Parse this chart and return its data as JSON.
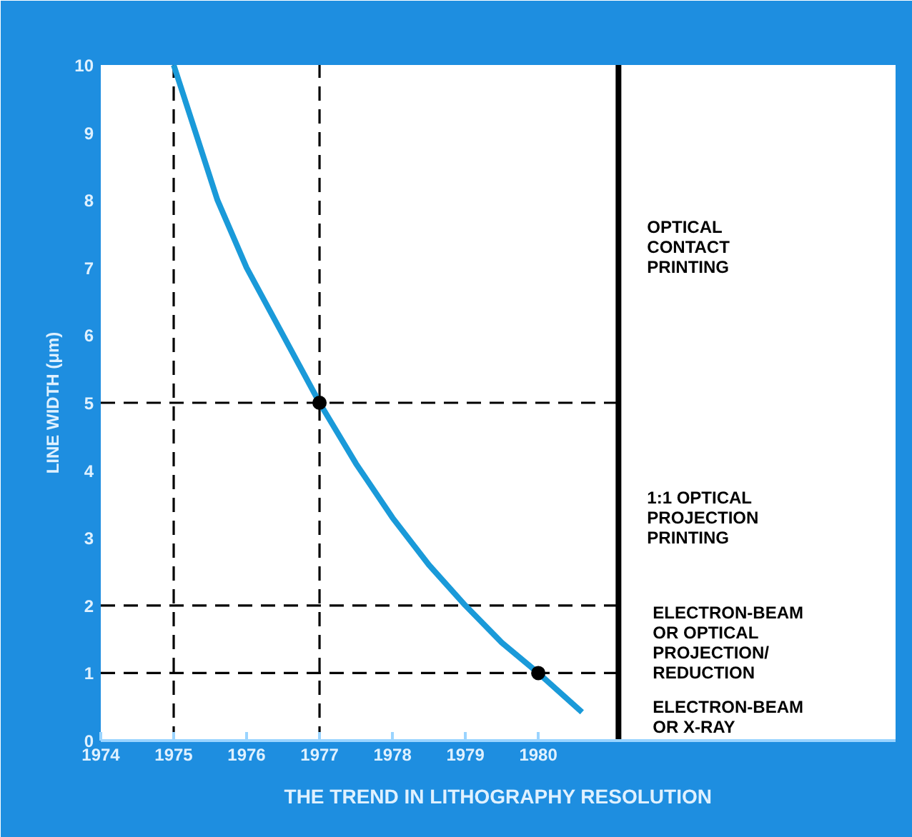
{
  "chart_data": {
    "type": "line",
    "title": "THE TREND IN LITHOGRAPHY RESOLUTION",
    "ylabel": "LINE WIDTH (μm)",
    "xlim": [
      1974,
      1984.9
    ],
    "xticks": [
      1974,
      1975,
      1976,
      1977,
      1978,
      1979,
      1980
    ],
    "ylim": [
      0,
      10
    ],
    "yticks": [
      0,
      1,
      2,
      3,
      4,
      5,
      6,
      7,
      8,
      9,
      10
    ],
    "grid": false,
    "series": [
      {
        "type": "line",
        "color": "#1a9ad9",
        "line_style": "solid",
        "marker": "none",
        "x": [
          1975,
          1975.3,
          1975.6,
          1976,
          1976.5,
          1977,
          1977.5,
          1978,
          1978.5,
          1979,
          1979.5,
          1980,
          1980.6
        ],
        "values": [
          10,
          9,
          8,
          7,
          6,
          5,
          4.1,
          3.3,
          2.6,
          2,
          1.45,
          1,
          0.42
        ]
      },
      {
        "type": "scatter",
        "color": "#000000",
        "marker": "circle",
        "x": [
          1977,
          1980
        ],
        "values": [
          5,
          1
        ]
      },
      {
        "color": "#000000",
        "line_style": "solid",
        "marker": "none",
        "x": [
          1981.1,
          1981.1
        ],
        "values": [
          0,
          10
        ]
      }
    ],
    "ref_lines": [
      {
        "axis": "y",
        "value": 5,
        "label": null,
        "color": "#000000",
        "line_style": "dashed"
      },
      {
        "axis": "y",
        "value": 2,
        "label": null,
        "color": "#000000",
        "line_style": "dashed"
      },
      {
        "axis": "y",
        "value": 1,
        "label": null,
        "color": "#000000",
        "line_style": "dashed"
      },
      {
        "axis": "x",
        "value": 1975,
        "label": null,
        "color": "#000000",
        "line_style": "dashed"
      },
      {
        "axis": "x",
        "value": 1977,
        "label": null,
        "color": "#000000",
        "line_style": "dashed"
      }
    ],
    "annotations": [
      "OPTICAL\nCONTACT\nPRINTING",
      "1:1 OPTICAL\nPROJECTION\nPRINTING",
      "ELECTRON-BEAM\nOR OPTICAL\nPROJECTION/\nREDUCTION",
      "ELECTRON-BEAM\nOR X-RAY"
    ]
  }
}
